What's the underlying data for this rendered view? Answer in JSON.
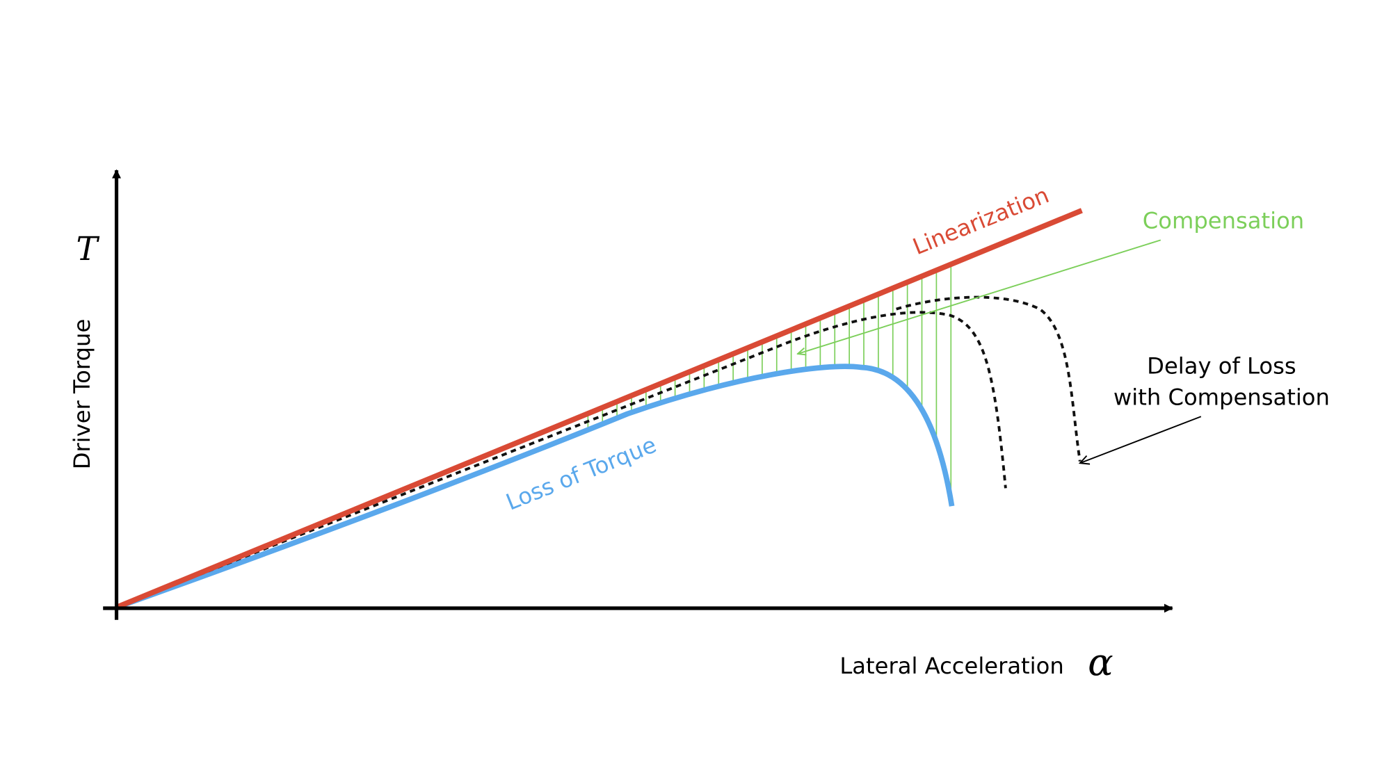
{
  "axes": {
    "y_symbol": "T",
    "y_label": "Driver Torque",
    "x_label": "Lateral Acceleration",
    "x_symbol": "α"
  },
  "curves": {
    "linearization": "Linearization",
    "loss": "Loss of Torque",
    "compensation": "Compensation"
  },
  "annotation": {
    "lines": [
      "Delay of Loss",
      "with Compensation"
    ]
  }
}
